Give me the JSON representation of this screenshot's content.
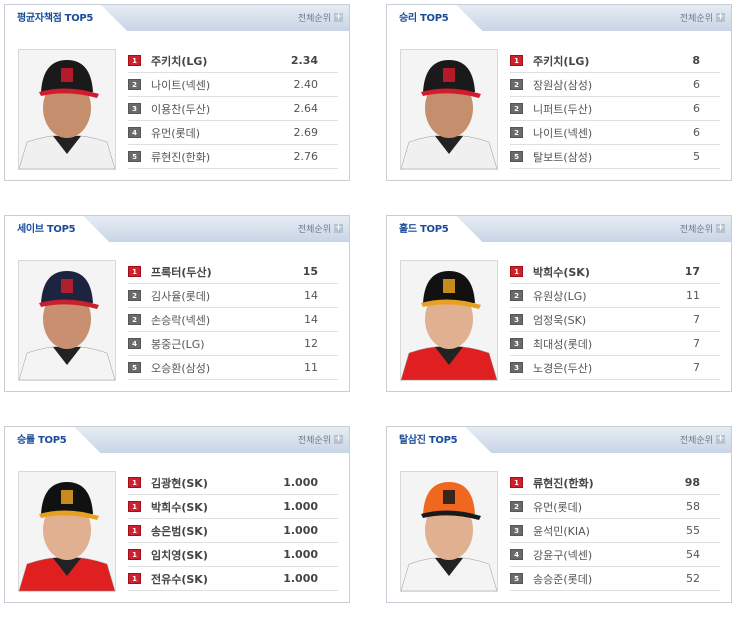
{
  "panels": [
    {
      "title": "평균자책점 TOP5",
      "more": "전체순위",
      "cap_color": "#1a1a1a",
      "cap_accent": "#d11b2f",
      "jersey": "#f0f0f0",
      "skin": "#c58f6e",
      "rows": [
        {
          "rank": "1",
          "name": "주키치(LG)",
          "value": "2.34"
        },
        {
          "rank": "2",
          "name": "나이트(넥센)",
          "value": "2.40"
        },
        {
          "rank": "3",
          "name": "이용찬(두산)",
          "value": "2.64"
        },
        {
          "rank": "4",
          "name": "유먼(롯데)",
          "value": "2.69"
        },
        {
          "rank": "5",
          "name": "류현진(한화)",
          "value": "2.76"
        }
      ]
    },
    {
      "title": "승리 TOP5",
      "more": "전체순위",
      "cap_color": "#1a1a1a",
      "cap_accent": "#d11b2f",
      "jersey": "#f0f0f0",
      "skin": "#c58f6e",
      "rows": [
        {
          "rank": "1",
          "name": "주키치(LG)",
          "value": "8"
        },
        {
          "rank": "2",
          "name": "장원삼(삼성)",
          "value": "6"
        },
        {
          "rank": "2",
          "name": "니퍼트(두산)",
          "value": "6"
        },
        {
          "rank": "2",
          "name": "나이트(넥센)",
          "value": "6"
        },
        {
          "rank": "5",
          "name": "탈보트(삼성)",
          "value": "5"
        }
      ]
    },
    {
      "title": "세이브 TOP5",
      "more": "전체순위",
      "cap_color": "#1c2440",
      "cap_accent": "#c8202c",
      "jersey": "#f4f4f4",
      "skin": "#c89070",
      "rows": [
        {
          "rank": "1",
          "name": "프록터(두산)",
          "value": "15"
        },
        {
          "rank": "2",
          "name": "김사율(롯데)",
          "value": "14"
        },
        {
          "rank": "2",
          "name": "손승락(넥센)",
          "value": "14"
        },
        {
          "rank": "4",
          "name": "봉중근(LG)",
          "value": "12"
        },
        {
          "rank": "5",
          "name": "오승환(삼성)",
          "value": "11"
        }
      ]
    },
    {
      "title": "홀드 TOP5",
      "more": "전체순위",
      "cap_color": "#111111",
      "cap_accent": "#e8a020",
      "jersey": "#e02020",
      "skin": "#e0b090",
      "rows": [
        {
          "rank": "1",
          "name": "박희수(SK)",
          "value": "17"
        },
        {
          "rank": "2",
          "name": "유원상(LG)",
          "value": "11"
        },
        {
          "rank": "3",
          "name": "엄정욱(SK)",
          "value": "7"
        },
        {
          "rank": "3",
          "name": "최대성(롯데)",
          "value": "7"
        },
        {
          "rank": "3",
          "name": "노경은(두산)",
          "value": "7"
        }
      ]
    },
    {
      "title": "승률 TOP5",
      "more": "전체순위",
      "cap_color": "#111111",
      "cap_accent": "#e8a020",
      "jersey": "#e02020",
      "skin": "#e0b090",
      "rows": [
        {
          "rank": "1",
          "name": "김광현(SK)",
          "value": "1.000"
        },
        {
          "rank": "1",
          "name": "박희수(SK)",
          "value": "1.000"
        },
        {
          "rank": "1",
          "name": "송은범(SK)",
          "value": "1.000"
        },
        {
          "rank": "1",
          "name": "임치영(SK)",
          "value": "1.000"
        },
        {
          "rank": "1",
          "name": "전유수(SK)",
          "value": "1.000"
        }
      ]
    },
    {
      "title": "탈삼진 TOP5",
      "more": "전체순위",
      "cap_color": "#f06820",
      "cap_accent": "#1a1a1a",
      "jersey": "#f4f4f4",
      "skin": "#e0b090",
      "rows": [
        {
          "rank": "1",
          "name": "류현진(한화)",
          "value": "98"
        },
        {
          "rank": "2",
          "name": "유먼(롯데)",
          "value": "58"
        },
        {
          "rank": "3",
          "name": "윤석민(KIA)",
          "value": "55"
        },
        {
          "rank": "4",
          "name": "강윤구(넥센)",
          "value": "54"
        },
        {
          "rank": "5",
          "name": "송승준(롯데)",
          "value": "52"
        }
      ]
    }
  ]
}
